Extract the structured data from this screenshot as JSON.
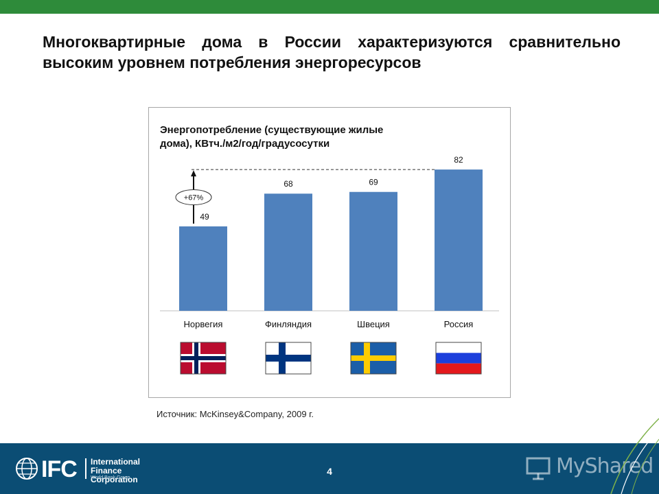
{
  "slide": {
    "title": "Многоквартирные дома в России характеризуются сравнительно высоким уровнем потребления энергоресурсов",
    "source": "Источник: McKinsey&Company, 2009 г.",
    "page_number": "4"
  },
  "footer": {
    "logo_mark": "IFC",
    "logo_name_line1": "International",
    "logo_name_line2": "Finance Corporation",
    "logo_sub": "World Bank Group",
    "watermark": "MyShared"
  },
  "chart_data": {
    "type": "bar",
    "title_line1": "Энергопотребление (существующие жилые",
    "title_line2": "дома), КВтч./м2/год/градусосутки",
    "categories": [
      "Норвегия",
      "Финляндия",
      "Швеция",
      "Россия"
    ],
    "values": [
      49,
      68,
      69,
      82
    ],
    "value_labels": [
      "49",
      "68",
      "69",
      "82"
    ],
    "ylim": [
      0,
      90
    ],
    "grid": false,
    "bar_color": "#4f81bd",
    "annotation": {
      "text": "+67%",
      "from_category": "Норвегия",
      "to_category": "Россия"
    },
    "flags": [
      "norway-flag",
      "finland-flag",
      "sweden-flag",
      "russia-flag"
    ]
  }
}
